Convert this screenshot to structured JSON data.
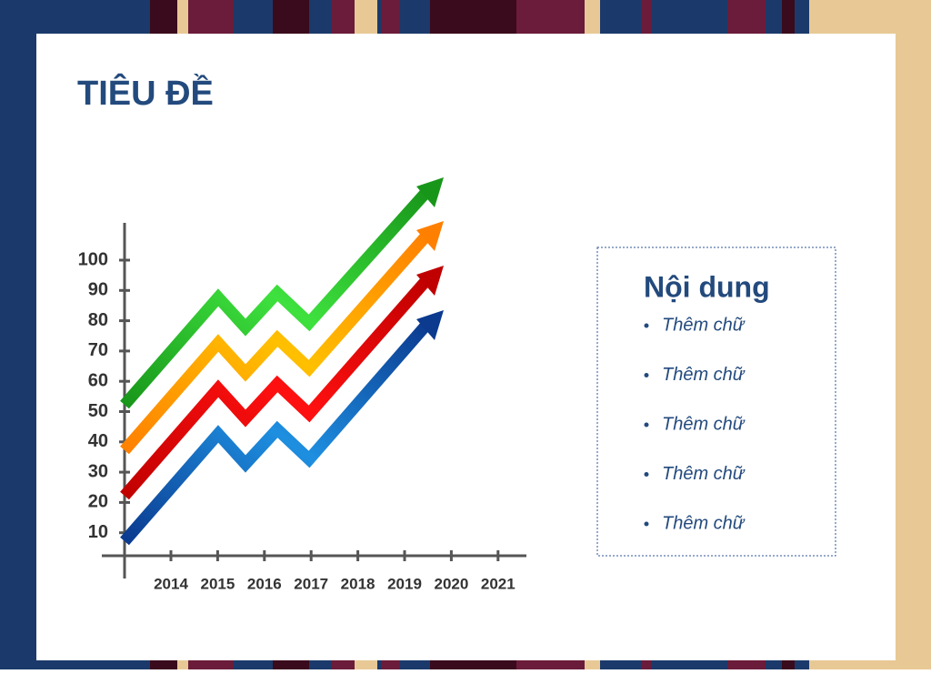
{
  "title": "TIÊU ĐỀ",
  "chart": {
    "y_labels": [
      100,
      90,
      80,
      70,
      60,
      50,
      40,
      30,
      20,
      10
    ],
    "x_labels": [
      "2014",
      "2015",
      "2016",
      "2017",
      "2018",
      "2019",
      "2020",
      "2021"
    ]
  },
  "content_box": {
    "heading": "Nội dung",
    "items": [
      "Thêm chữ",
      "Thêm chữ",
      "Thêm chữ",
      "Thêm chữ",
      "Thêm chữ"
    ]
  }
}
